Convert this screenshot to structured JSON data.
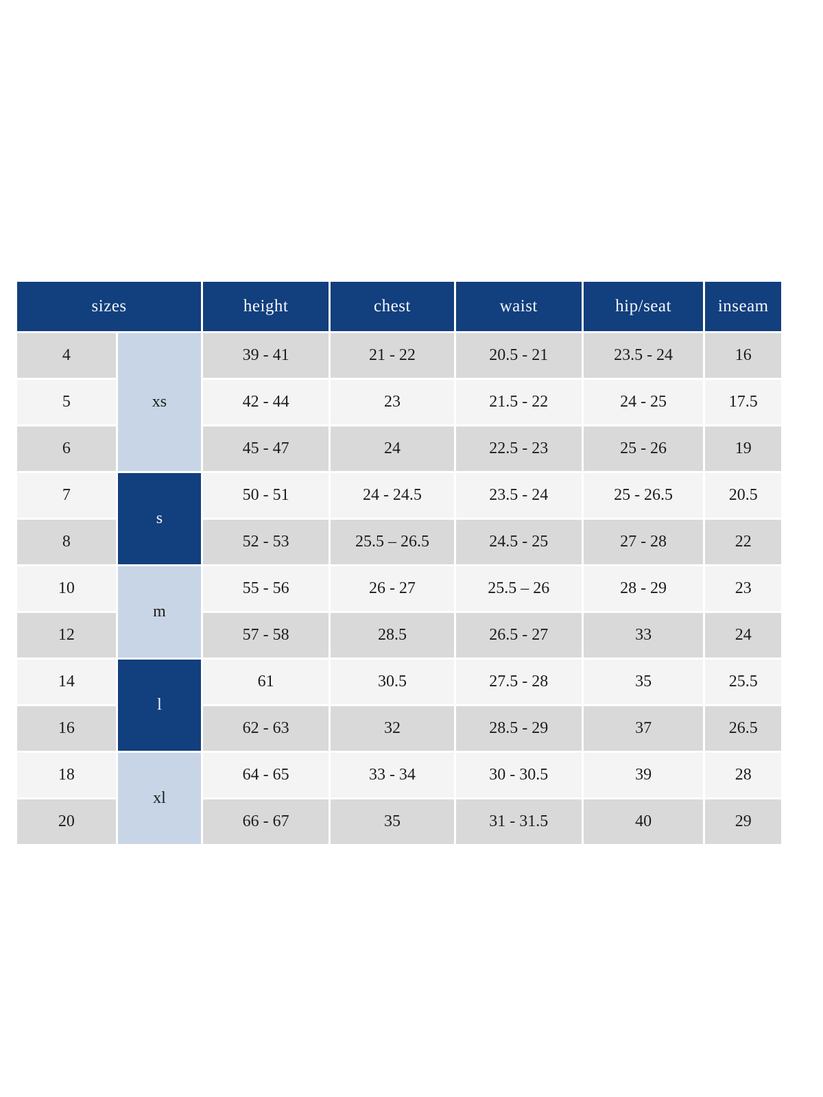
{
  "colors": {
    "header_navy": "#123f7d",
    "group_light_blue": "#c8d5e6",
    "row_gray": "#d9d9d9",
    "row_light": "#f4f4f4",
    "header_text": "#f5f7fa",
    "body_text": "#1c1c1c"
  },
  "table": {
    "headers": {
      "sizes": "sizes",
      "height": "height",
      "chest": "chest",
      "waist": "waist",
      "hip_seat": "hip/seat",
      "inseam": "inseam"
    },
    "groups": [
      {
        "label": "xs",
        "rows": 3,
        "style": "light"
      },
      {
        "label": "s",
        "rows": 2,
        "style": "dark"
      },
      {
        "label": "m",
        "rows": 2,
        "style": "light"
      },
      {
        "label": "l",
        "rows": 2,
        "style": "dark"
      },
      {
        "label": "xl",
        "rows": 2,
        "style": "light"
      }
    ],
    "rows": [
      {
        "size": "4",
        "height": "39 - 41",
        "chest": "21 - 22",
        "waist": "20.5 - 21",
        "hip_seat": "23.5 - 24",
        "inseam": "16"
      },
      {
        "size": "5",
        "height": "42 - 44",
        "chest": "23",
        "waist": "21.5 - 22",
        "hip_seat": "24 - 25",
        "inseam": "17.5"
      },
      {
        "size": "6",
        "height": "45 - 47",
        "chest": "24",
        "waist": "22.5 - 23",
        "hip_seat": "25 - 26",
        "inseam": "19"
      },
      {
        "size": "7",
        "height": "50 - 51",
        "chest": "24 - 24.5",
        "waist": "23.5 - 24",
        "hip_seat": "25 - 26.5",
        "inseam": "20.5"
      },
      {
        "size": "8",
        "height": "52 - 53",
        "chest": "25.5 – 26.5",
        "waist": "24.5 - 25",
        "hip_seat": "27 - 28",
        "inseam": "22"
      },
      {
        "size": "10",
        "height": "55 - 56",
        "chest": "26 - 27",
        "waist": "25.5 – 26",
        "hip_seat": "28 - 29",
        "inseam": "23"
      },
      {
        "size": "12",
        "height": "57 - 58",
        "chest": "28.5",
        "waist": "26.5 - 27",
        "hip_seat": "33",
        "inseam": "24"
      },
      {
        "size": "14",
        "height": "61",
        "chest": "30.5",
        "waist": "27.5 - 28",
        "hip_seat": "35",
        "inseam": "25.5"
      },
      {
        "size": "16",
        "height": "62 - 63",
        "chest": "32",
        "waist": "28.5 - 29",
        "hip_seat": "37",
        "inseam": "26.5"
      },
      {
        "size": "18",
        "height": "64 - 65",
        "chest": "33 - 34",
        "waist": "30 - 30.5",
        "hip_seat": "39",
        "inseam": "28"
      },
      {
        "size": "20",
        "height": "66 - 67",
        "chest": "35",
        "waist": "31 - 31.5",
        "hip_seat": "40",
        "inseam": "29"
      }
    ]
  }
}
